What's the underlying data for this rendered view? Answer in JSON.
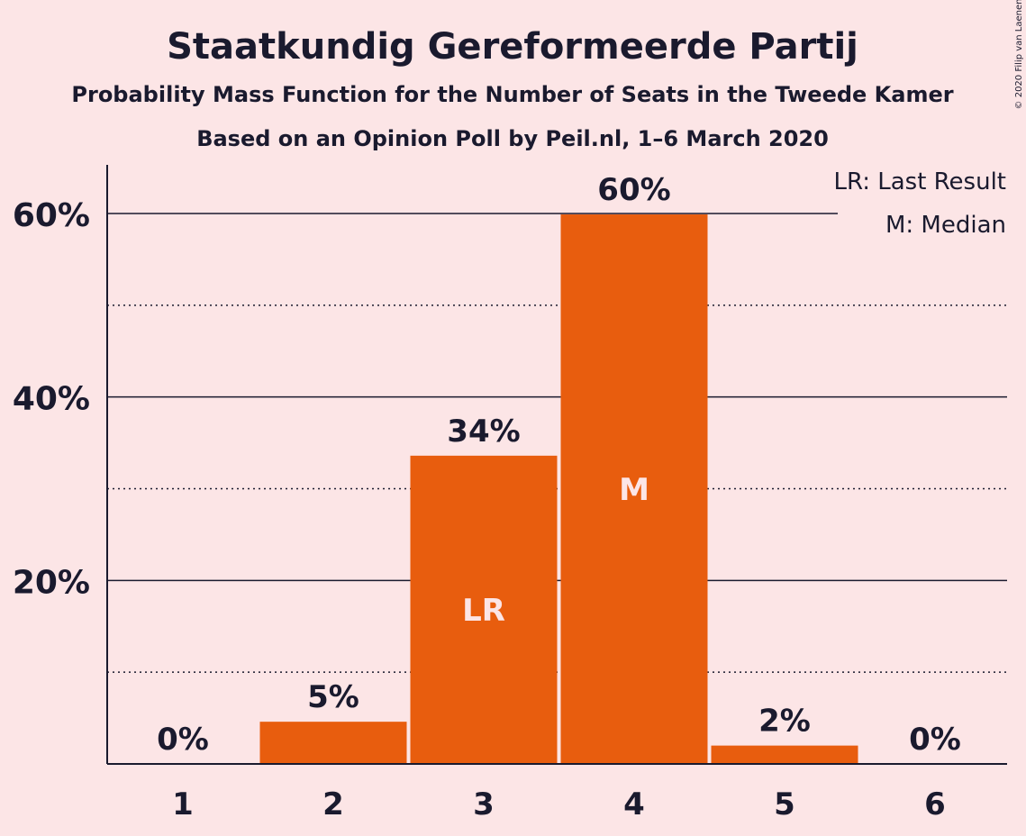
{
  "chart_data": {
    "type": "bar",
    "title": "Staatkundig Gereformeerde Partij",
    "subtitle": "Probability Mass Function for the Number of Seats in the Tweede Kamer",
    "subtitle2": "Based on an Opinion Poll by Peil.nl, 1–6 March 2020",
    "copyright": "© 2020 Filip van Laenen",
    "categories": [
      "1",
      "2",
      "3",
      "4",
      "5",
      "6"
    ],
    "values": [
      0,
      4.6,
      33.6,
      59.9,
      2.0,
      0
    ],
    "value_labels": [
      "0%",
      "5%",
      "34%",
      "60%",
      "2%",
      "0%"
    ],
    "bar_markers": [
      "",
      "",
      "LR",
      "M",
      "",
      ""
    ],
    "ylim": [
      0,
      65
    ],
    "yticks_major": [
      20,
      40,
      60
    ],
    "ytick_labels": [
      "20%",
      "40%",
      "60%"
    ],
    "yticks_minor": [
      10,
      30,
      50
    ],
    "legend": [
      "LR: Last Result",
      "M: Median"
    ],
    "legend_position": "top-right",
    "bar_color": "#e85d0e",
    "background_color": "#fce5e6",
    "text_color": "#1a1a2e"
  }
}
